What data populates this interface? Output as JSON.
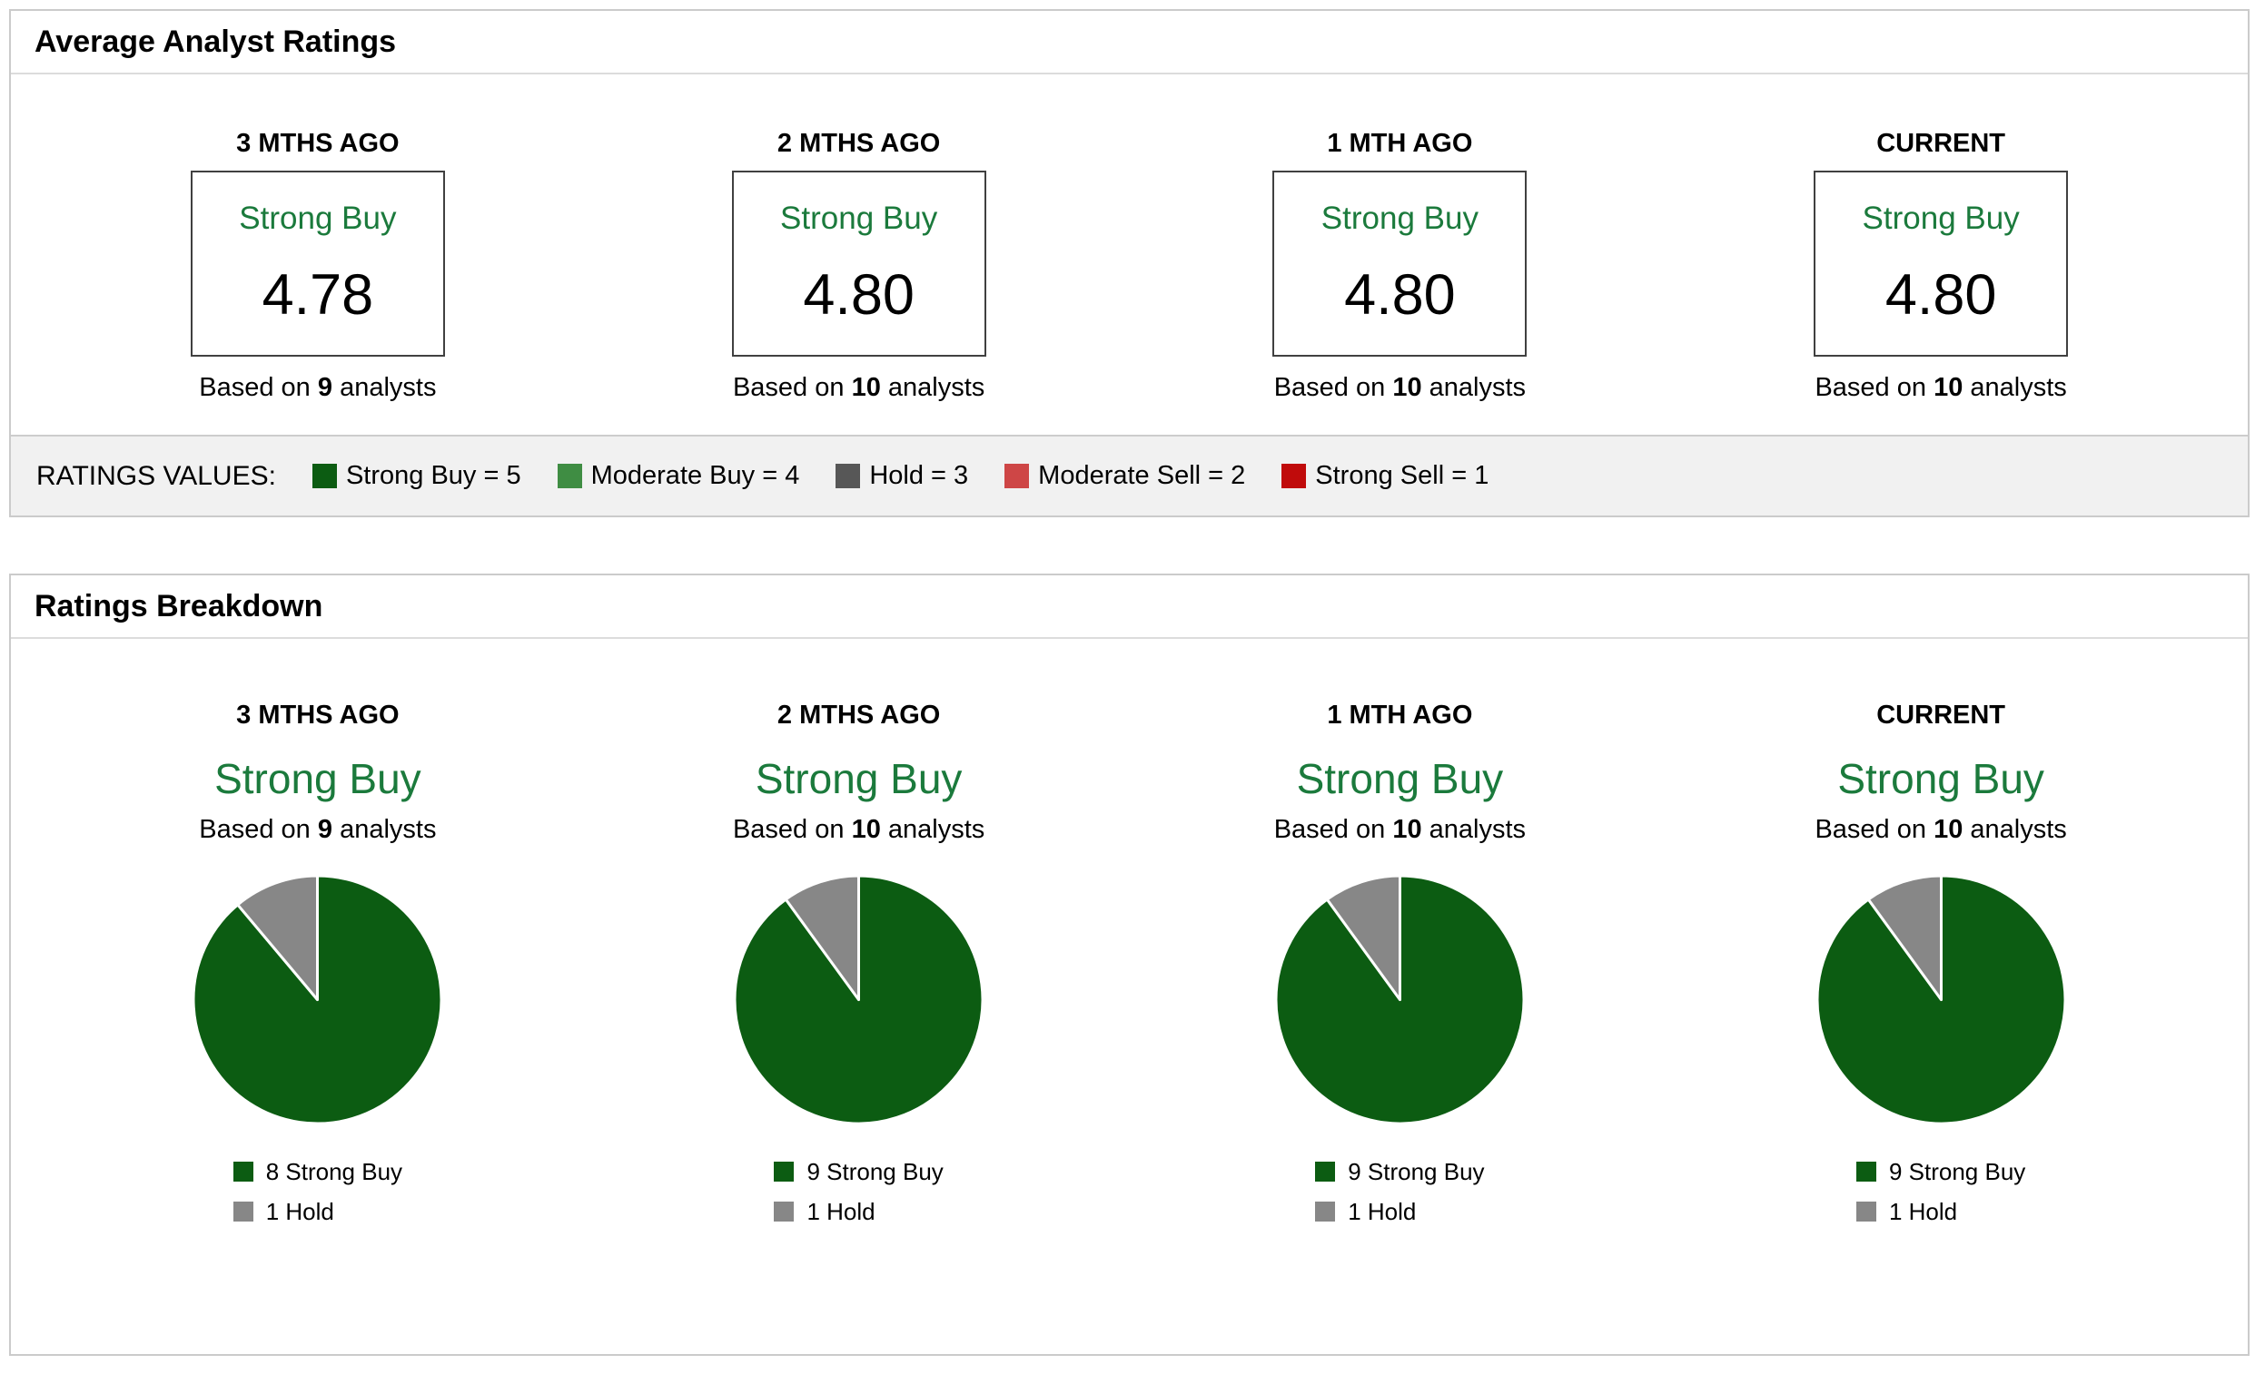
{
  "colors": {
    "strong_buy_green": "#0C5C12",
    "moderate_buy_green": "#3F8D43",
    "hold_dark_gray": "#575757",
    "moderate_sell_red": "#CE4646",
    "strong_sell_red": "#C00B0B",
    "pie_hold_gray": "#878787",
    "rating_text_green": "#1B7A3C"
  },
  "average_panel": {
    "title": "Average Analyst Ratings",
    "columns": [
      {
        "period": "3 MTHS AGO",
        "rating": "Strong Buy",
        "score": "4.78",
        "based_prefix": "Based on ",
        "analysts": "9",
        "based_suffix": " analysts"
      },
      {
        "period": "2 MTHS AGO",
        "rating": "Strong Buy",
        "score": "4.80",
        "based_prefix": "Based on ",
        "analysts": "10",
        "based_suffix": " analysts"
      },
      {
        "period": "1 MTH AGO",
        "rating": "Strong Buy",
        "score": "4.80",
        "based_prefix": "Based on ",
        "analysts": "10",
        "based_suffix": " analysts"
      },
      {
        "period": "CURRENT",
        "rating": "Strong Buy",
        "score": "4.80",
        "based_prefix": "Based on ",
        "analysts": "10",
        "based_suffix": " analysts"
      }
    ]
  },
  "ratings_values": {
    "label": "RATINGS VALUES:",
    "items": [
      {
        "label": "Strong Buy = 5",
        "color": "#0C5C12"
      },
      {
        "label": "Moderate Buy = 4",
        "color": "#3F8D43"
      },
      {
        "label": "Hold = 3",
        "color": "#575757"
      },
      {
        "label": "Moderate Sell = 2",
        "color": "#CE4646"
      },
      {
        "label": "Strong Sell = 1",
        "color": "#C00B0B"
      }
    ]
  },
  "breakdown_panel": {
    "title": "Ratings Breakdown",
    "columns": [
      {
        "period": "3 MTHS AGO",
        "rating": "Strong Buy",
        "based_prefix": "Based on ",
        "analysts": "9",
        "based_suffix": " analysts",
        "pie": {
          "slices": [
            {
              "label": "8 Strong Buy",
              "value": 8,
              "color": "#0C5C12"
            },
            {
              "label": "1 Hold",
              "value": 1,
              "color": "#878787"
            }
          ]
        }
      },
      {
        "period": "2 MTHS AGO",
        "rating": "Strong Buy",
        "based_prefix": "Based on ",
        "analysts": "10",
        "based_suffix": " analysts",
        "pie": {
          "slices": [
            {
              "label": "9 Strong Buy",
              "value": 9,
              "color": "#0C5C12"
            },
            {
              "label": "1 Hold",
              "value": 1,
              "color": "#878787"
            }
          ]
        }
      },
      {
        "period": "1 MTH AGO",
        "rating": "Strong Buy",
        "based_prefix": "Based on ",
        "analysts": "10",
        "based_suffix": " analysts",
        "pie": {
          "slices": [
            {
              "label": "9 Strong Buy",
              "value": 9,
              "color": "#0C5C12"
            },
            {
              "label": "1 Hold",
              "value": 1,
              "color": "#878787"
            }
          ]
        }
      },
      {
        "period": "CURRENT",
        "rating": "Strong Buy",
        "based_prefix": "Based on ",
        "analysts": "10",
        "based_suffix": " analysts",
        "pie": {
          "slices": [
            {
              "label": "9 Strong Buy",
              "value": 9,
              "color": "#0C5C12"
            },
            {
              "label": "1 Hold",
              "value": 1,
              "color": "#878787"
            }
          ]
        }
      }
    ]
  },
  "chart_data": [
    {
      "type": "table",
      "title": "Average Analyst Ratings",
      "categories": [
        "3 MTHS AGO",
        "2 MTHS AGO",
        "1 MTH AGO",
        "CURRENT"
      ],
      "values": [
        4.78,
        4.8,
        4.8,
        4.8
      ],
      "ratings": [
        "Strong Buy",
        "Strong Buy",
        "Strong Buy",
        "Strong Buy"
      ],
      "analysts": [
        9,
        10,
        10,
        10
      ],
      "rating_scale": {
        "Strong Buy": 5,
        "Moderate Buy": 4,
        "Hold": 3,
        "Moderate Sell": 2,
        "Strong Sell": 1
      }
    },
    {
      "type": "pie",
      "title": "3 MTHS AGO",
      "labels": [
        "Strong Buy",
        "Hold"
      ],
      "values": [
        8,
        1
      ],
      "colors": [
        "#0C5C12",
        "#878787"
      ]
    },
    {
      "type": "pie",
      "title": "2 MTHS AGO",
      "labels": [
        "Strong Buy",
        "Hold"
      ],
      "values": [
        9,
        1
      ],
      "colors": [
        "#0C5C12",
        "#878787"
      ]
    },
    {
      "type": "pie",
      "title": "1 MTH AGO",
      "labels": [
        "Strong Buy",
        "Hold"
      ],
      "values": [
        9,
        1
      ],
      "colors": [
        "#0C5C12",
        "#878787"
      ]
    },
    {
      "type": "pie",
      "title": "CURRENT",
      "labels": [
        "Strong Buy",
        "Hold"
      ],
      "values": [
        9,
        1
      ],
      "colors": [
        "#0C5C12",
        "#878787"
      ]
    }
  ]
}
